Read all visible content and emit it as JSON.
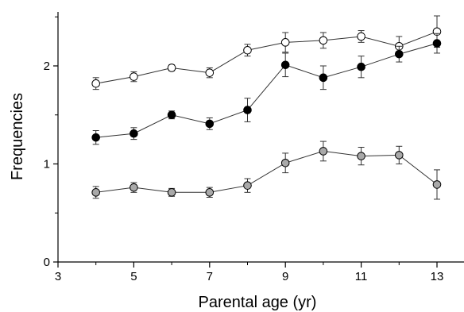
{
  "chart_data": {
    "type": "line",
    "title": "",
    "xlabel": "Parental age (yr)",
    "ylabel": "Frequencies",
    "xlim": [
      3,
      14
    ],
    "ylim": [
      0,
      2.55
    ],
    "xticks": [
      3,
      5,
      7,
      9,
      11,
      13
    ],
    "xticks_minor": [
      4,
      6,
      8,
      10,
      12,
      14
    ],
    "yticks": [
      0,
      1,
      2
    ],
    "yticks_minor": [
      0.5,
      1.5,
      2.5
    ],
    "yticklabels": [
      "0",
      "1",
      "2"
    ],
    "grid": false,
    "legend": "none",
    "x": [
      4,
      5,
      6,
      7,
      8,
      9,
      10,
      11,
      12,
      13
    ],
    "series": [
      {
        "marker": "open",
        "color": "#ffffff",
        "values": [
          1.82,
          1.89,
          1.98,
          1.93,
          2.16,
          2.24,
          2.26,
          2.3,
          2.2,
          2.35
        ],
        "errors": [
          0.06,
          0.05,
          0.03,
          0.05,
          0.06,
          0.1,
          0.08,
          0.06,
          0.1,
          0.16
        ]
      },
      {
        "marker": "filled",
        "color": "#000000",
        "values": [
          1.27,
          1.31,
          1.5,
          1.41,
          1.55,
          2.01,
          1.88,
          1.99,
          2.12,
          2.23
        ],
        "errors": [
          0.07,
          0.06,
          0.04,
          0.06,
          0.12,
          0.12,
          0.12,
          0.11,
          0.08,
          0.1
        ]
      },
      {
        "marker": "gray",
        "color": "#a9a9a9",
        "values": [
          0.71,
          0.76,
          0.71,
          0.71,
          0.78,
          1.01,
          1.13,
          1.08,
          1.09,
          0.79
        ],
        "errors": [
          0.06,
          0.05,
          0.04,
          0.05,
          0.07,
          0.1,
          0.1,
          0.09,
          0.09,
          0.15
        ]
      }
    ]
  }
}
